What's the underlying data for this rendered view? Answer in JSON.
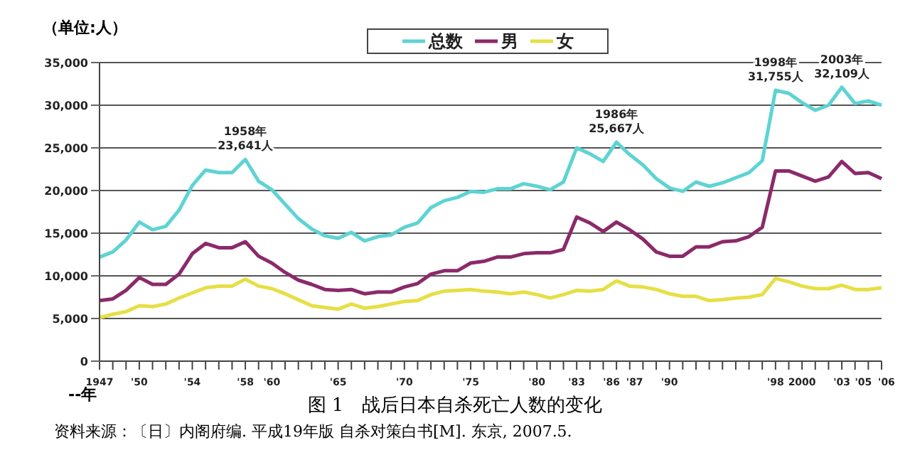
{
  "chart_data": {
    "type": "line",
    "title": "图 1　战后日本自杀死亡人数的变化",
    "ylabel": "（单位:人）",
    "xlabel": "--年",
    "categories": [
      "1947",
      null,
      null,
      "'50",
      null,
      null,
      null,
      "'54",
      null,
      null,
      null,
      "'58",
      null,
      "'60",
      null,
      null,
      null,
      null,
      "'65",
      null,
      null,
      null,
      null,
      "'70",
      null,
      null,
      null,
      null,
      "'75",
      null,
      null,
      null,
      null,
      "'80",
      null,
      null,
      "'83",
      null,
      null,
      "'86",
      "'87",
      null,
      null,
      "'90",
      null,
      null,
      null,
      null,
      null,
      null,
      null,
      "'98",
      null,
      "2000",
      null,
      null,
      "'03",
      null,
      "'05",
      "'06"
    ],
    "series": [
      {
        "name": "总数",
        "color": "#5fd3d3",
        "values": [
          12200,
          12800,
          14200,
          16300,
          15400,
          15800,
          17700,
          20600,
          22400,
          22100,
          22100,
          23641,
          21100,
          20100,
          18400,
          16700,
          15500,
          14700,
          14400,
          15100,
          14100,
          14600,
          14800,
          15700,
          16200,
          18000,
          18800,
          19200,
          19900,
          19800,
          20200,
          20200,
          20800,
          20500,
          20100,
          21000,
          25000,
          24300,
          23400,
          25667,
          24200,
          23000,
          21400,
          20300,
          19900,
          21000,
          20500,
          20900,
          21500,
          22100,
          23500,
          31755,
          31400,
          30300,
          29400,
          30000,
          32109,
          30200,
          30500,
          30000
        ]
      },
      {
        "name": "男",
        "color": "#8b2a6a",
        "values": [
          7100,
          7300,
          8300,
          9800,
          9000,
          9000,
          10200,
          12600,
          13800,
          13300,
          13300,
          14000,
          12300,
          11500,
          10400,
          9500,
          9000,
          8400,
          8300,
          8400,
          7900,
          8100,
          8100,
          8700,
          9100,
          10200,
          10600,
          10600,
          11500,
          11700,
          12200,
          12200,
          12600,
          12700,
          12700,
          13100,
          16900,
          16200,
          15200,
          16300,
          15400,
          14300,
          12800,
          12300,
          12300,
          13400,
          13400,
          14000,
          14100,
          14600,
          15700,
          22300,
          22300,
          21700,
          21100,
          21600,
          23400,
          22000,
          22100,
          21400
        ]
      },
      {
        "name": "女",
        "color": "#e6df45",
        "values": [
          5100,
          5500,
          5800,
          6500,
          6400,
          6700,
          7400,
          8000,
          8600,
          8800,
          8800,
          9600,
          8800,
          8500,
          7900,
          7200,
          6500,
          6300,
          6100,
          6700,
          6200,
          6400,
          6700,
          7000,
          7100,
          7800,
          8200,
          8300,
          8400,
          8200,
          8100,
          7900,
          8100,
          7800,
          7400,
          7800,
          8300,
          8200,
          8400,
          9400,
          8800,
          8700,
          8400,
          7900,
          7600,
          7600,
          7100,
          7200,
          7400,
          7500,
          7800,
          9700,
          9300,
          8800,
          8500,
          8500,
          8900,
          8400,
          8400,
          8600
        ]
      }
    ],
    "ylim": [
      0,
      35000
    ],
    "yticks": [
      0,
      {
        "value": 5000,
        "label": "5,000"
      },
      {
        "value": 10000,
        "label": "10,000"
      },
      {
        "value": 15000,
        "label": "15,000"
      },
      {
        "value": 20000,
        "label": "20,000"
      },
      {
        "value": 25000,
        "label": "25,000"
      },
      {
        "value": 30000,
        "label": "30,000"
      },
      {
        "value": 35000,
        "label": "35,000"
      }
    ],
    "grid": "y",
    "legend": "top",
    "marker": "none",
    "line_style": "solid",
    "annotations": [
      {
        "text": "1958年\n23,641人",
        "x": "'58",
        "y": 23641
      },
      {
        "text": "1986年\n25,667人",
        "x": "'86",
        "y": 25667
      },
      {
        "text": "1998年\n31,755人",
        "x": "'98",
        "y": 31755
      },
      {
        "text": "2003年\n32,109人",
        "x": "'03",
        "y": 32109
      },
      "资料来源：〔日〕内阁府编. 平成19年版 自杀对策白书[M]. 东京, 2007.5."
    ]
  }
}
